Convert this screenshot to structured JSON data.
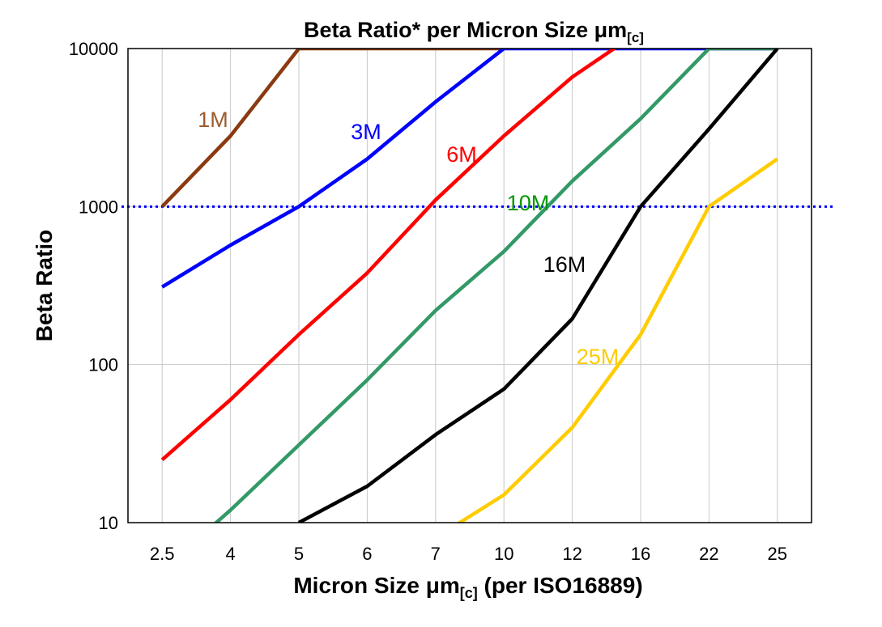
{
  "chart_data": {
    "type": "line",
    "title": "Beta Ratio* per Micron Size μm",
    "title_subscript": "[c]",
    "xlabel": "Micron Size μm",
    "xlabel_subscript": "[c]",
    "xlabel_suffix": " (per ISO16889)",
    "ylabel": "Beta Ratio",
    "yscale": "log",
    "ylim": [
      10,
      10000
    ],
    "yticks": [
      "10",
      "100",
      "1000",
      "10000"
    ],
    "categories": [
      "2.5",
      "4",
      "5",
      "6",
      "7",
      "10",
      "12",
      "16",
      "22",
      "25"
    ],
    "grid": true,
    "reference_line": {
      "value": 1000,
      "color": "#0000FF",
      "style": "dotted"
    },
    "series": [
      {
        "name": "1M",
        "color": "#8B3A0F",
        "label_color": "#9C5B2E",
        "values": [
          1000,
          2800,
          10000,
          10000,
          10000,
          10000,
          null,
          null,
          null,
          null
        ]
      },
      {
        "name": "3M",
        "color": "#0000FF",
        "label_color": "#0000FF",
        "values": [
          310,
          570,
          1000,
          2000,
          4600,
          10000,
          10000,
          10000,
          10000,
          10000
        ]
      },
      {
        "name": "6M",
        "color": "#FF0000",
        "label_color": "#FF0000",
        "values": [
          25,
          60,
          155,
          380,
          1100,
          2800,
          6600,
          13000,
          null,
          null
        ]
      },
      {
        "name": "10M",
        "color": "#339966",
        "label_color": "#009900",
        "values": [
          5,
          12,
          31,
          80,
          220,
          520,
          1450,
          3600,
          10000,
          10000
        ]
      },
      {
        "name": "16M",
        "color": "#000000",
        "label_color": "#000000",
        "values": [
          null,
          null,
          10,
          17,
          36,
          70,
          195,
          1000,
          3100,
          10000
        ]
      },
      {
        "name": "25M",
        "color": "#FFCC00",
        "label_color": "#FFCC00",
        "values": [
          null,
          null,
          null,
          null,
          8,
          15,
          40,
          155,
          1000,
          2000
        ]
      }
    ]
  }
}
